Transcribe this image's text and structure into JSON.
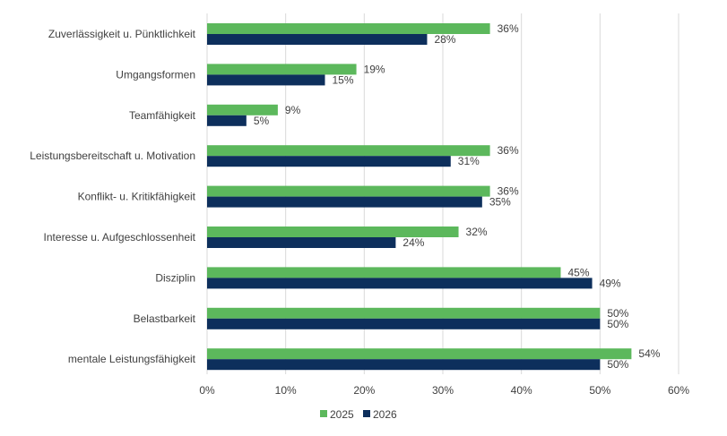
{
  "chart_data": {
    "type": "bar",
    "orientation": "horizontal",
    "categories": [
      "Zuverlässigkeit u. Pünktlichkeit",
      "Umgangsformen",
      "Teamfähigkeit",
      "Leistungsbereitschaft u. Motivation",
      "Konflikt- u. Kritikfähigkeit",
      "Interesse u. Aufgeschlossenheit",
      "Disziplin",
      "Belastbarkeit",
      "mentale Leistungsfähigkeit"
    ],
    "series": [
      {
        "name": "2025",
        "color": "#5cb85c",
        "values": [
          36,
          19,
          9,
          36,
          36,
          32,
          45,
          50,
          54
        ]
      },
      {
        "name": "2026",
        "color": "#0d2f5c",
        "values": [
          28,
          15,
          5,
          31,
          35,
          24,
          49,
          50,
          50
        ]
      }
    ],
    "xlim": [
      0,
      60
    ],
    "x_ticks": [
      0,
      10,
      20,
      30,
      40,
      50,
      60
    ],
    "tick_suffix": "%",
    "gridlines": "vertical",
    "grid_color": "#d9d9d9",
    "legend_position": "bottom-center",
    "title": "",
    "xlabel": "",
    "ylabel": ""
  }
}
